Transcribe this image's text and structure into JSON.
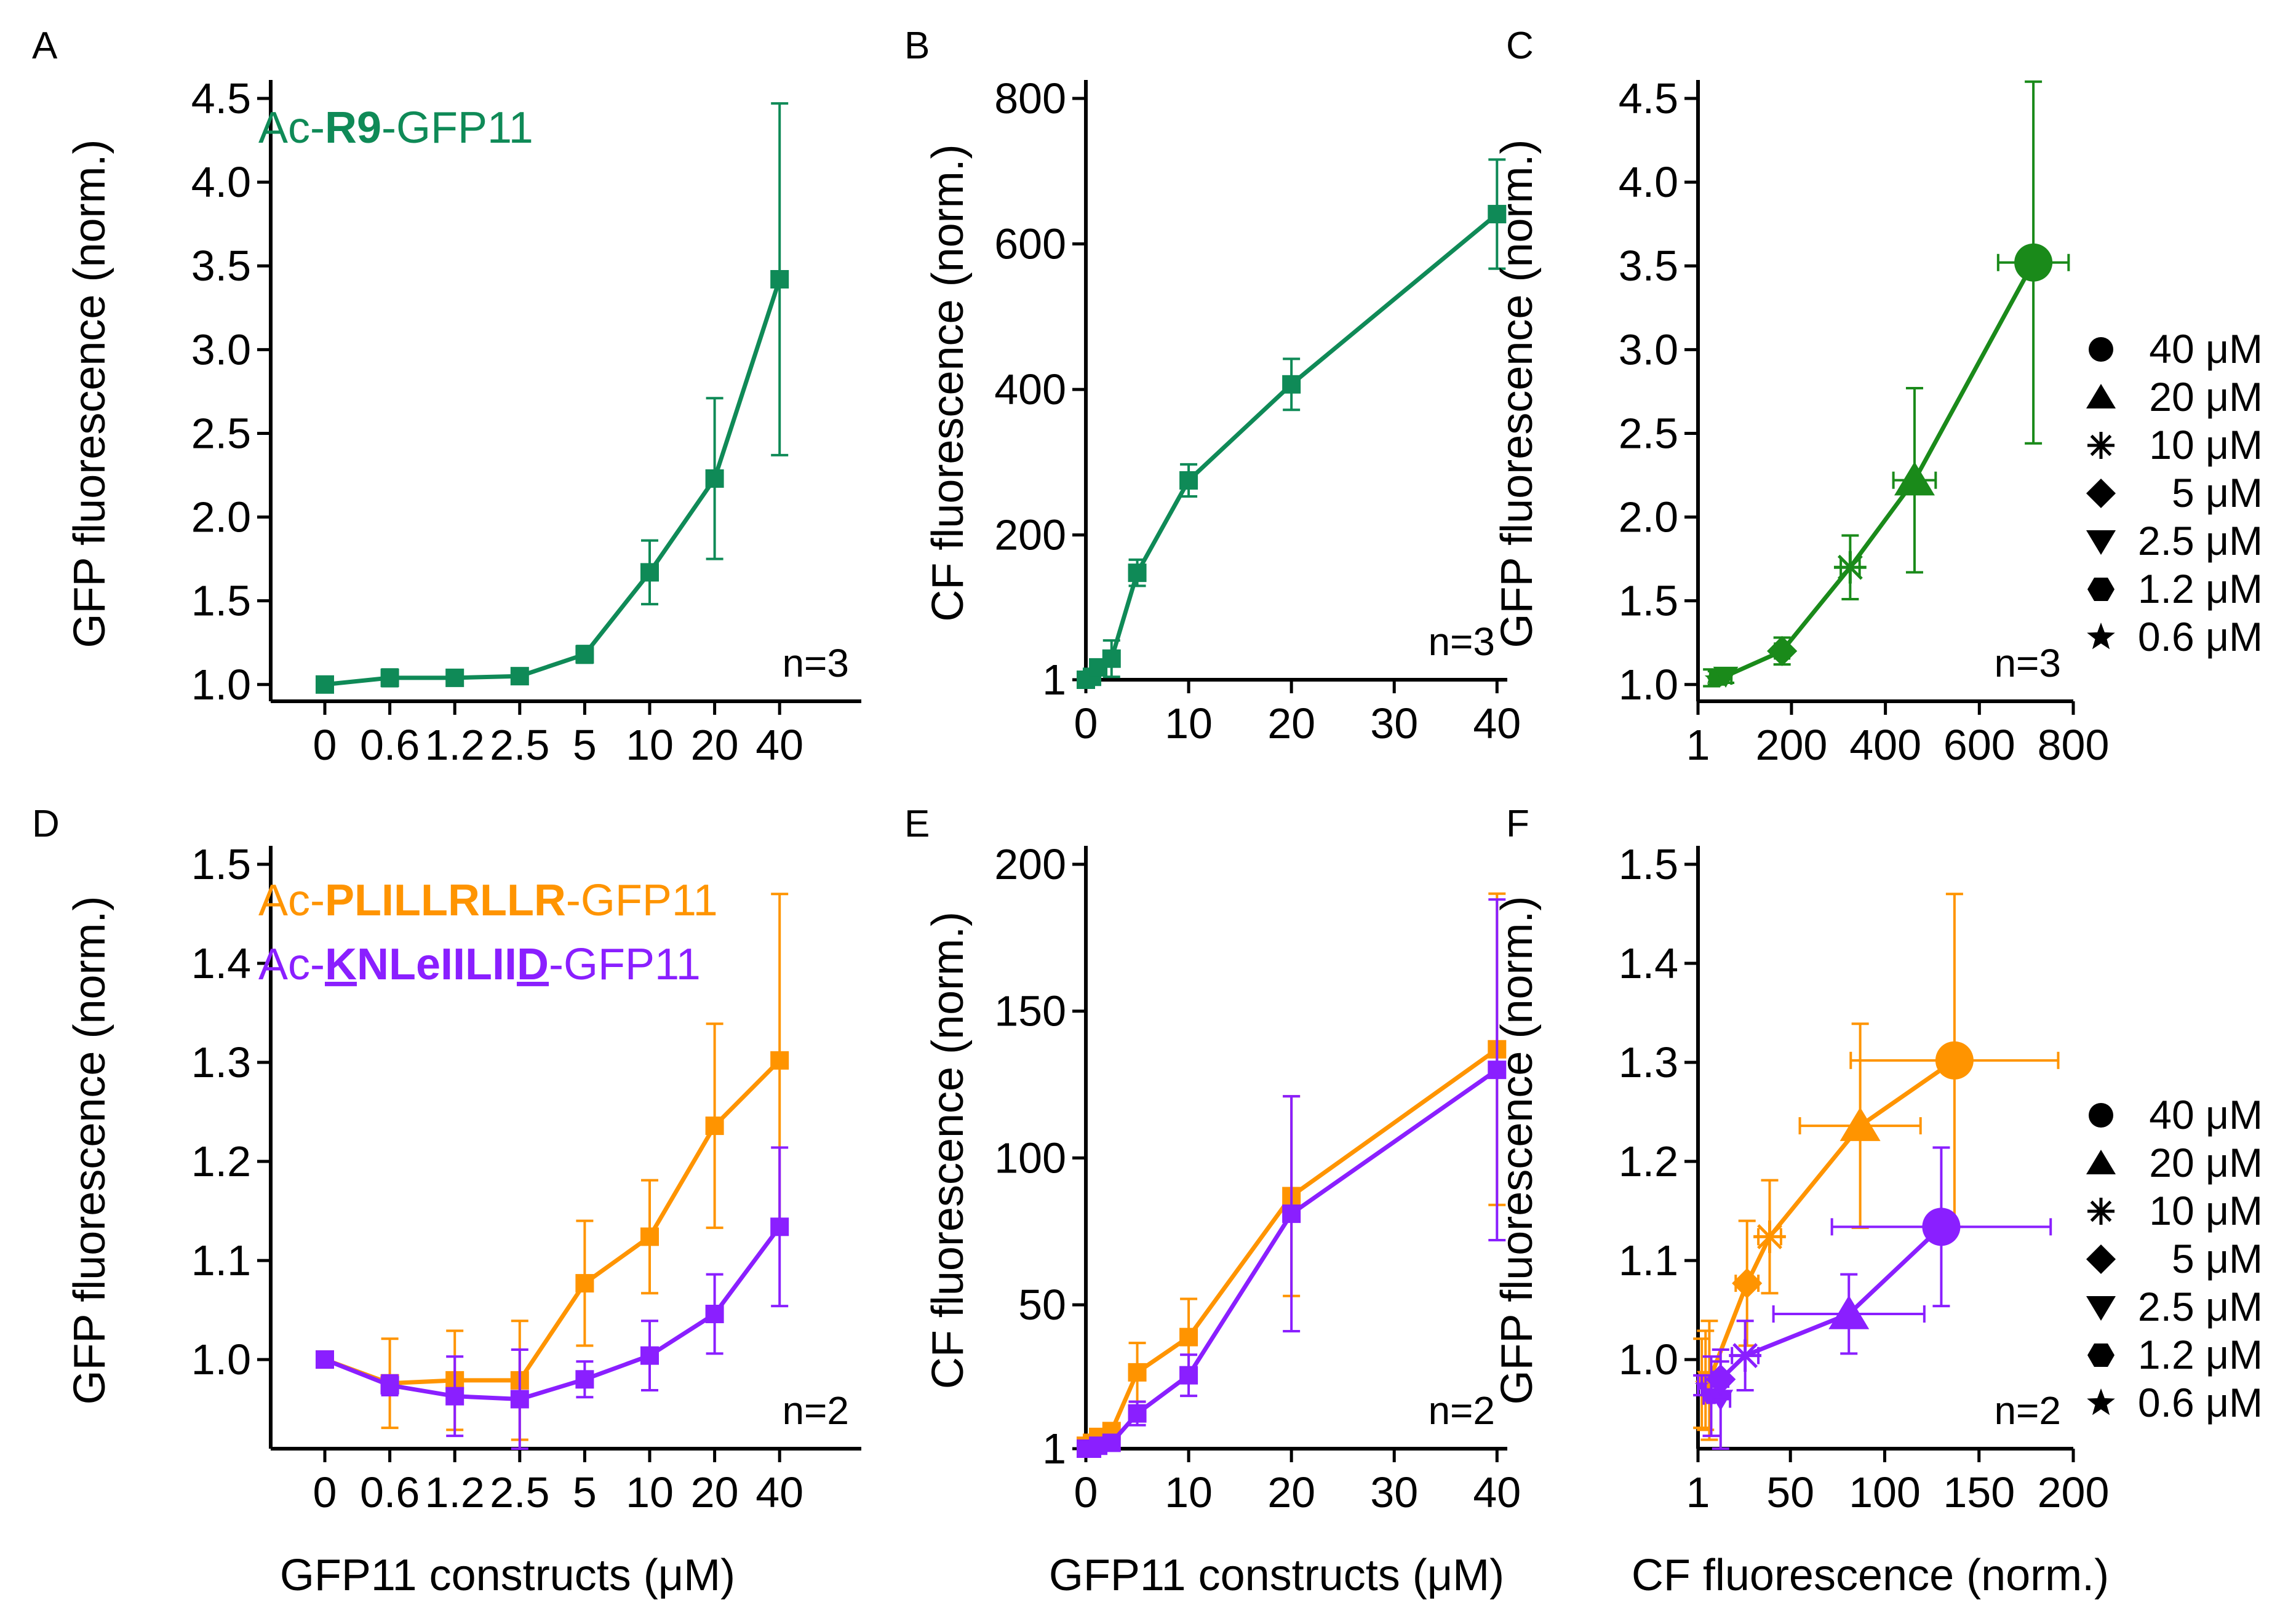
{
  "colors": {
    "green_a": "#0f8a57",
    "green_c": "#1a8a1a",
    "orange": "#ff9400",
    "purple": "#8a1fff",
    "purple_light": "#a86bff"
  },
  "shared": {
    "concentration_ticks": [
      "0",
      "0.6",
      "1.2",
      "2.5",
      "5",
      "10",
      "20",
      "40"
    ],
    "legend": [
      {
        "symbol": "circle",
        "label": "40 μM"
      },
      {
        "symbol": "triangle-up",
        "label": "20 μM"
      },
      {
        "symbol": "asterisk",
        "label": "10 μM"
      },
      {
        "symbol": "diamond",
        "label": "5 μM"
      },
      {
        "symbol": "triangle-down",
        "label": "2.5 μM"
      },
      {
        "symbol": "hexagon",
        "label": "1.2 μM"
      },
      {
        "symbol": "star",
        "label": "0.6 μM"
      }
    ],
    "xlabel_bottom_left": "GFP11 constructs (μM)",
    "xlabel_bottom_mid": "GFP11 constructs (μM)",
    "xlabel_bottom_right": "CF fluorescence (norm.)"
  },
  "annotations": {
    "A": {
      "prefix": "Ac-",
      "bold": "R9",
      "suffix": "-GFP11"
    },
    "D1": {
      "prefix": "Ac-",
      "bold": "PLILLRLLR",
      "suffix": "-GFP11"
    },
    "D2": {
      "prefix": "Ac-",
      "parts": [
        "K",
        "NLeIILII",
        "D"
      ],
      "suffix": "-GFP11"
    }
  },
  "chart_data": [
    {
      "panel": "A",
      "type": "line",
      "ylabel": "GFP fluorescence  (norm.)",
      "ylim": [
        0.9,
        4.5
      ],
      "yticks": [
        1.0,
        1.5,
        2.0,
        2.5,
        3.0,
        3.5,
        4.0,
        4.5
      ],
      "ytick_labels": [
        "1.0",
        "1.5",
        "2.0",
        "2.5",
        "3.0",
        "3.5",
        "4.0",
        "4.5"
      ],
      "x": [
        "0",
        "0.6",
        "1.2",
        "2.5",
        "5",
        "10",
        "20",
        "40"
      ],
      "n_label": "n=3",
      "series": [
        {
          "color": "#0f8a57",
          "marker": "square",
          "values": [
            1.0,
            1.04,
            1.04,
            1.05,
            1.18,
            1.67,
            2.23,
            3.42
          ],
          "err": [
            0.01,
            0.05,
            0.04,
            0.04,
            0.05,
            0.19,
            0.48,
            1.05
          ]
        }
      ]
    },
    {
      "panel": "B",
      "type": "line",
      "ylabel": "CF fluorescence (norm.)",
      "xlim": [
        0,
        41
      ],
      "ylim": [
        1,
        800
      ],
      "xticks": [
        0,
        10,
        20,
        30,
        40
      ],
      "xtick_labels": [
        "0",
        "10",
        "20",
        "30",
        "40"
      ],
      "yticks": [
        1,
        200,
        400,
        600,
        800
      ],
      "ytick_labels": [
        "1",
        "200",
        "400",
        "600",
        "800"
      ],
      "n_label": "n=3",
      "series": [
        {
          "color": "#0f8a57",
          "marker": "square",
          "x": [
            0,
            0.6,
            1.2,
            2.5,
            5,
            10,
            20,
            40
          ],
          "values": [
            1,
            5,
            18,
            30,
            148,
            275,
            407,
            641
          ],
          "err": [
            1,
            3,
            10,
            25,
            18,
            22,
            35,
            75
          ]
        }
      ]
    },
    {
      "panel": "C",
      "type": "scatter",
      "ylabel": "GFP fluorescence  (norm.)",
      "xlim": [
        1,
        800
      ],
      "ylim": [
        0.9,
        4.5
      ],
      "xticks": [
        1,
        200,
        400,
        600,
        800
      ],
      "xtick_labels": [
        "1",
        "200",
        "400",
        "600",
        "800"
      ],
      "yticks": [
        1.0,
        1.5,
        2.0,
        2.5,
        3.0,
        3.5,
        4.0,
        4.5
      ],
      "ytick_labels": [
        "1.0",
        "1.5",
        "2.0",
        "2.5",
        "3.0",
        "3.5",
        "4.0",
        "4.5"
      ],
      "n_label": "n=3",
      "series": [
        {
          "color": "#1a8a1a",
          "points": [
            {
              "x": 30,
              "y": 1.04,
              "xerr": 3,
              "yerr": 0.05,
              "marker": "star"
            },
            {
              "x": 40,
              "y": 1.04,
              "xerr": 8,
              "yerr": 0.04,
              "marker": "hexagon"
            },
            {
              "x": 60,
              "y": 1.05,
              "xerr": 12,
              "yerr": 0.04,
              "marker": "triangle-down"
            },
            {
              "x": 180,
              "y": 1.2,
              "xerr": 15,
              "yerr": 0.08,
              "marker": "diamond"
            },
            {
              "x": 325,
              "y": 1.7,
              "xerr": 20,
              "yerr": 0.19,
              "marker": "asterisk"
            },
            {
              "x": 462,
              "y": 2.22,
              "xerr": 45,
              "yerr": 0.55,
              "marker": "triangle-up"
            },
            {
              "x": 715,
              "y": 3.52,
              "xerr": 75,
              "yerr": 1.08,
              "marker": "circle"
            }
          ]
        }
      ]
    },
    {
      "panel": "D",
      "type": "line",
      "ylabel": "GFP fluorescence  (norm.)",
      "ylim": [
        0.91,
        1.5
      ],
      "yticks": [
        1.0,
        1.1,
        1.2,
        1.3,
        1.4,
        1.5
      ],
      "ytick_labels": [
        "1.0",
        "1.1",
        "1.2",
        "1.3",
        "1.4",
        "1.5"
      ],
      "x": [
        "0",
        "0.6",
        "1.2",
        "2.5",
        "5",
        "10",
        "20",
        "40"
      ],
      "xlabel": "GFP11 constructs (μM)",
      "n_label": "n=2",
      "series": [
        {
          "color": "#ff9400",
          "marker": "square",
          "values": [
            1.0,
            0.976,
            0.979,
            0.979,
            1.077,
            1.124,
            1.236,
            1.302
          ],
          "err": [
            0.003,
            0.045,
            0.05,
            0.06,
            0.063,
            0.057,
            0.103,
            0.168
          ]
        },
        {
          "color": "#8a1fff",
          "marker": "square",
          "values": [
            1.0,
            0.974,
            0.963,
            0.96,
            0.98,
            1.004,
            1.046,
            1.134
          ],
          "err": [
            0.003,
            0.01,
            0.04,
            0.05,
            0.018,
            0.035,
            0.04,
            0.08
          ]
        }
      ]
    },
    {
      "panel": "E",
      "type": "line",
      "ylabel": "CF fluorescence (norm.)",
      "xlim": [
        0,
        41
      ],
      "ylim": [
        1,
        200
      ],
      "xticks": [
        0,
        10,
        20,
        30,
        40
      ],
      "xtick_labels": [
        "0",
        "10",
        "20",
        "30",
        "40"
      ],
      "yticks": [
        1,
        50,
        100,
        150,
        200
      ],
      "ytick_labels": [
        "1",
        "50",
        "100",
        "150",
        "200"
      ],
      "xlabel": "GFP11 constructs (μM)",
      "n_label": "n=2",
      "series": [
        {
          "color": "#ff9400",
          "marker": "square",
          "x": [
            0,
            0.6,
            1.2,
            2.5,
            5,
            10,
            20,
            40
          ],
          "values": [
            2,
            3,
            5,
            7,
            27,
            39,
            87,
            137
          ],
          "err": [
            1,
            1,
            1,
            2,
            10,
            13,
            34,
            53
          ]
        },
        {
          "color": "#8a1fff",
          "marker": "square",
          "x": [
            0,
            0.6,
            1.2,
            2.5,
            5,
            10,
            20,
            40
          ],
          "values": [
            1,
            1,
            2,
            3,
            13,
            26,
            81,
            130
          ],
          "err": [
            1,
            1,
            1,
            2,
            4,
            7,
            40,
            58
          ]
        }
      ]
    },
    {
      "panel": "F",
      "type": "scatter",
      "ylabel": "GFP fluorescence  (norm.)",
      "xlim": [
        1,
        200
      ],
      "ylim": [
        0.91,
        1.5
      ],
      "xticks": [
        1,
        50,
        100,
        150,
        200
      ],
      "xtick_labels": [
        "1",
        "50",
        "100",
        "150",
        "200"
      ],
      "yticks": [
        1.0,
        1.1,
        1.2,
        1.3,
        1.4,
        1.5
      ],
      "ytick_labels": [
        "1.0",
        "1.1",
        "1.2",
        "1.3",
        "1.4",
        "1.5"
      ],
      "xlabel": "CF fluorescence (norm.)",
      "n_label": "n=2",
      "series": [
        {
          "color": "#ff9400",
          "points": [
            {
              "x": 3,
              "y": 0.976,
              "xerr": 2,
              "yerr": 0.045,
              "marker": "star"
            },
            {
              "x": 5,
              "y": 0.979,
              "xerr": 2,
              "yerr": 0.05,
              "marker": "hexagon"
            },
            {
              "x": 7,
              "y": 0.979,
              "xerr": 3,
              "yerr": 0.06,
              "marker": "triangle-down"
            },
            {
              "x": 27,
              "y": 1.077,
              "xerr": 6,
              "yerr": 0.063,
              "marker": "diamond"
            },
            {
              "x": 39,
              "y": 1.124,
              "xerr": 6,
              "yerr": 0.057,
              "marker": "asterisk"
            },
            {
              "x": 87,
              "y": 1.236,
              "xerr": 32,
              "yerr": 0.103,
              "marker": "triangle-up"
            },
            {
              "x": 137,
              "y": 1.302,
              "xerr": 55,
              "yerr": 0.168,
              "marker": "circle"
            }
          ]
        },
        {
          "color": "#8a1fff",
          "points": [
            {
              "x": 3,
              "y": 0.974,
              "xerr": 2,
              "yerr": 0.01,
              "marker": "star"
            },
            {
              "x": 8,
              "y": 0.963,
              "xerr": 4,
              "yerr": 0.04,
              "marker": "hexagon"
            },
            {
              "x": 13,
              "y": 0.96,
              "xerr": 5,
              "yerr": 0.05,
              "marker": "triangle-down"
            },
            {
              "x": 13,
              "y": 0.98,
              "xerr": 4,
              "yerr": 0.018,
              "marker": "diamond"
            },
            {
              "x": 26,
              "y": 1.004,
              "xerr": 7,
              "yerr": 0.035,
              "marker": "asterisk"
            },
            {
              "x": 81,
              "y": 1.046,
              "xerr": 40,
              "yerr": 0.04,
              "marker": "triangle-up"
            },
            {
              "x": 130,
              "y": 1.134,
              "xerr": 58,
              "yerr": 0.08,
              "marker": "circle"
            }
          ]
        }
      ]
    }
  ]
}
